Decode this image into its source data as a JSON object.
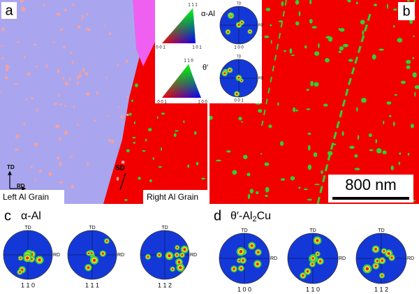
{
  "panels": {
    "a": {
      "label": "a",
      "td": "TD",
      "rd": "RD",
      "sd": "SD",
      "left_grain": "Left Al Grain",
      "right_grain": "Right Al Grain"
    },
    "b": {
      "label": "b",
      "scale_bar": "800 nm"
    },
    "inset": {
      "alpha": {
        "phase": "α-Al",
        "corners": [
          "1 1 1",
          "0 0 1",
          "1 0 1"
        ],
        "pole": {
          "td": "TD",
          "rd": "RD",
          "label": "1 0 0"
        }
      },
      "theta": {
        "phase": "θ'",
        "corners": [
          "1 1 0",
          "0 0 1",
          "1 0 0"
        ],
        "pole": {
          "td": "TD",
          "rd": "RD",
          "label": "0 0 1"
        }
      }
    },
    "c": {
      "label": "c",
      "title": "α-Al",
      "poles": [
        {
          "td": "TD",
          "rd": "RD",
          "label": "1 1 0"
        },
        {
          "td": "TD",
          "rd": "RD",
          "label": "1 1 1"
        },
        {
          "td": "TD",
          "rd": "RD",
          "label": "1 1 2"
        }
      ]
    },
    "d": {
      "label": "d",
      "title_main": "θ′-Al",
      "title_sub": "2",
      "title_end": "Cu",
      "poles": [
        {
          "td": "TD",
          "rd": "RD",
          "label": "1 0 0"
        },
        {
          "td": "TD",
          "rd": "RD",
          "label": "1 1 0"
        },
        {
          "td": "TD",
          "rd": "RD",
          "label": "1 1 2"
        }
      ]
    }
  }
}
